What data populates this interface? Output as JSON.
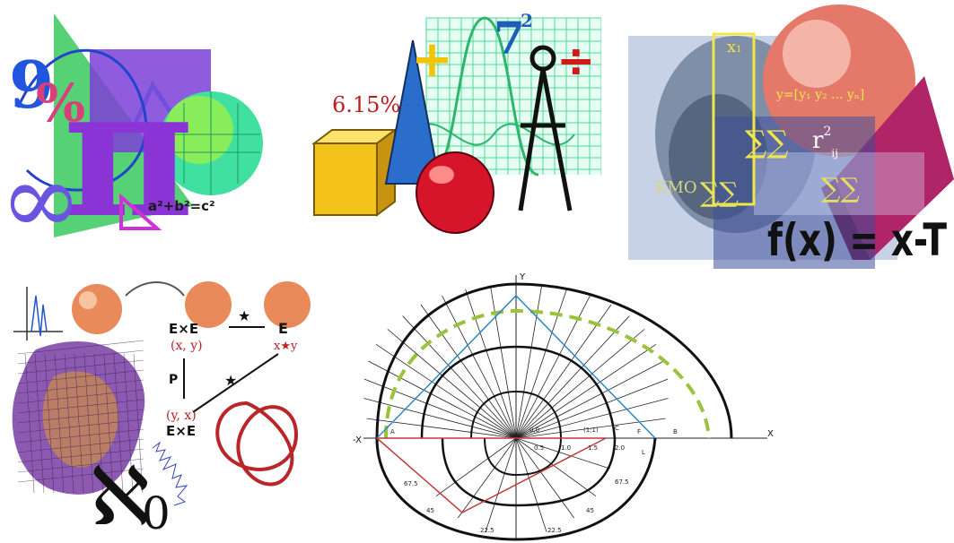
{
  "collage": {
    "panel1": {
      "pi": "π",
      "percent": "%",
      "nine": "9",
      "infinity": "∞",
      "pythagoras": "a²+b²=c²"
    },
    "panel2": {
      "percent_label": "6.15%",
      "power_base": "7",
      "power_exp": "2",
      "plus": "+",
      "divide": "÷"
    },
    "panel3": {
      "fx": "f(x) = x-T",
      "r_label": "r",
      "r_exp": "2",
      "r_sub": "ij",
      "x_label": "x",
      "x_sub": "1",
      "y_set": "y=[y₁ y₂ ... yₙ]",
      "kmo": "KMO",
      "sigma": "∑∑"
    },
    "panel4": {
      "exe_top": "E×E",
      "xy_top": "(x, y)",
      "e_target": "E",
      "xstar_y": "x★y",
      "p_label": "P",
      "yx_bottom": "(y, x)",
      "exe_bottom": "E×E",
      "star": "★",
      "aleph": "ℵ",
      "aleph_sub": "0"
    },
    "panel5": {
      "x_neg": "-X",
      "x_pos": "X",
      "y_axis": "Y",
      "labels": [
        "67.5",
        "67.5",
        "45",
        "45",
        "22.5",
        "22.5",
        "0.5",
        "1.0",
        "1.5",
        "2.0",
        "(1;1)",
        "0,0",
        "L",
        "C",
        "A",
        "F",
        "B"
      ]
    }
  }
}
